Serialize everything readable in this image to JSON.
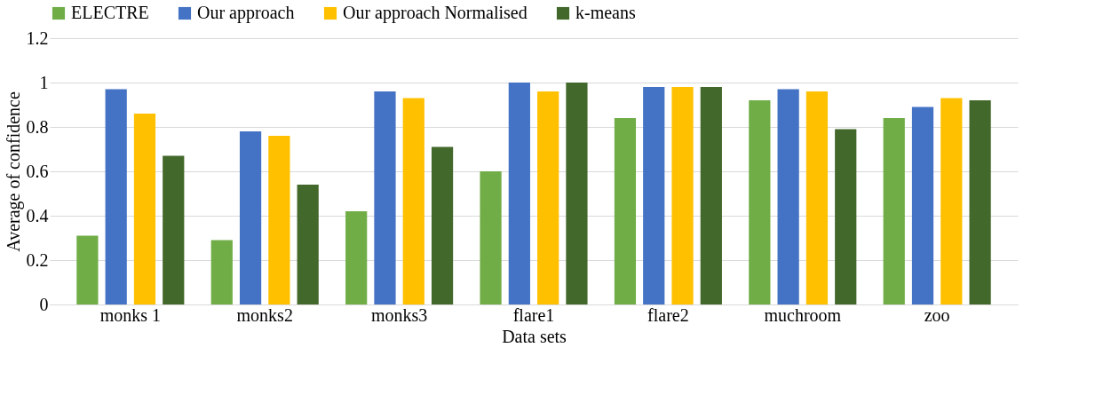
{
  "chart_data": {
    "type": "bar",
    "xlabel": "Data sets",
    "ylabel": "Average of confidence",
    "categories": [
      "monks 1",
      "monks2",
      "monks3",
      "flare1",
      "flare2",
      "muchroom",
      "zoo"
    ],
    "series": [
      {
        "name": "ELECTRE",
        "color": "#70ad47",
        "values": [
          0.31,
          0.29,
          0.42,
          0.6,
          0.84,
          0.92,
          0.84
        ]
      },
      {
        "name": "Our approach",
        "color": "#4472c4",
        "values": [
          0.97,
          0.78,
          0.96,
          1.0,
          0.98,
          0.97,
          0.89
        ]
      },
      {
        "name": "Our approach Normalised",
        "color": "#ffc000",
        "values": [
          0.86,
          0.76,
          0.93,
          0.96,
          0.98,
          0.96,
          0.93
        ]
      },
      {
        "name": "k-means",
        "color": "#43682b",
        "values": [
          0.67,
          0.54,
          0.71,
          1.0,
          0.98,
          0.79,
          0.92
        ]
      }
    ],
    "ylim": [
      0,
      1.2
    ],
    "yticks": [
      0,
      0.2,
      0.4,
      0.6,
      0.8,
      1,
      1.2
    ],
    "grid": "y",
    "legend": "top"
  }
}
